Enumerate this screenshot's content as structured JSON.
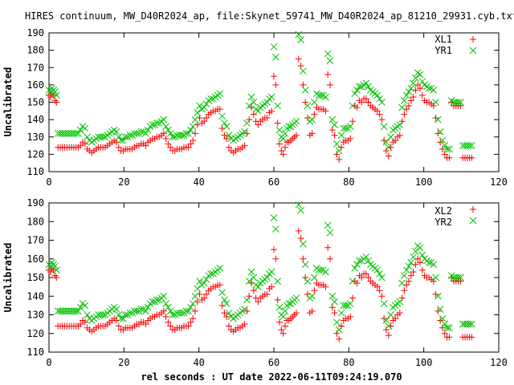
{
  "title": "HIRES continuum, MW_D40R2024_ap, file:Skynet_59741_MW_D40R2024_ap_81210_29931.cyb.txt",
  "xlabel": "rel seconds : UT date 2022-06-11T09:24:19.070",
  "colors": {
    "series1": "#ff0000",
    "series2": "#00c000"
  },
  "chart_data": [
    {
      "type": "scatter",
      "ylabel": "Uncalibrated",
      "xlim": [
        0,
        120
      ],
      "ylim": [
        110,
        190
      ],
      "xticks": [
        0,
        20,
        40,
        60,
        80,
        100,
        120
      ],
      "yticks": [
        110,
        120,
        130,
        140,
        150,
        160,
        170,
        180,
        190
      ],
      "legend": "top-right",
      "grid": false,
      "series": [
        {
          "name": "XL1",
          "marker": "plus",
          "x": [],
          "y": []
        },
        {
          "name": "YR1",
          "marker": "cross",
          "x": [],
          "y": []
        }
      ]
    },
    {
      "type": "scatter",
      "ylabel": "Uncalibrated",
      "xlim": [
        0,
        120
      ],
      "ylim": [
        110,
        190
      ],
      "xticks": [
        0,
        20,
        40,
        60,
        80,
        100,
        120
      ],
      "yticks": [
        110,
        120,
        130,
        140,
        150,
        160,
        170,
        180,
        190
      ],
      "legend": "top-right",
      "grid": false,
      "series": [
        {
          "name": "XL2",
          "marker": "plus",
          "x": [],
          "y": []
        },
        {
          "name": "YR2",
          "marker": "cross",
          "x": [],
          "y": []
        }
      ]
    }
  ]
}
